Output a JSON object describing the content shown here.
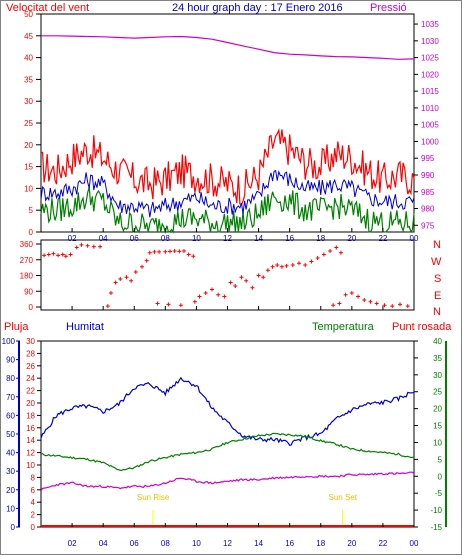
{
  "header": {
    "left_label": "Velocitat del vent",
    "title": "24 hour graph day : 17 Enero 2016",
    "right_label": "Pressió"
  },
  "lower_header": {
    "rain_label": "Pluja",
    "humidity_label": "Humitat",
    "temperature_label": "Temperatura",
    "dewpoint_label": "Punt rosada"
  },
  "compass": [
    "N",
    "W",
    "S",
    "E",
    "N"
  ],
  "sun": {
    "rise_label": "Sun Rise",
    "set_label": "Sun Set"
  },
  "colors": {
    "wind_gust": "#ff0000",
    "wind_avg": "#0000cc",
    "wind_low": "#008000",
    "pressure": "#cc00cc",
    "direction": "#ff0000",
    "humidity": "#0000cc",
    "temperature": "#008000",
    "dewpoint": "#cc00cc",
    "rain": "#ff0000",
    "sun": "#ffff00"
  },
  "chart_data": [
    {
      "type": "line",
      "title": "24 hour graph day : 17 Enero 2016",
      "x_tick_labels": [
        "02",
        "04",
        "06",
        "08",
        "10",
        "12",
        "14",
        "16",
        "18",
        "20",
        "22",
        "00"
      ],
      "y_left_label": "Velocitat del vent",
      "y_left_ticks": [
        "0",
        "5",
        "10",
        "15",
        "20",
        "25",
        "30",
        "35",
        "40",
        "45",
        "50"
      ],
      "ylim_left": [
        0,
        50
      ],
      "y_right_label": "Pressió",
      "y_right_ticks": [
        "975",
        "980",
        "985",
        "990",
        "995",
        "1000",
        "1005",
        "1010",
        "1015",
        "1020",
        "1025",
        "1030",
        "1035"
      ],
      "ylim_right": [
        973,
        1038
      ],
      "hours": [
        0,
        1,
        2,
        3,
        4,
        5,
        6,
        7,
        8,
        9,
        10,
        11,
        12,
        13,
        14,
        15,
        16,
        17,
        18,
        19,
        20,
        21,
        22,
        23,
        24
      ],
      "series": [
        {
          "name": "gust",
          "values": [
            15,
            14,
            17,
            19,
            17,
            14,
            12,
            11,
            12,
            14,
            13,
            12,
            11,
            10,
            13,
            21,
            19,
            16,
            15,
            18,
            17,
            14,
            12,
            13,
            12
          ]
        },
        {
          "name": "average",
          "values": [
            9,
            9,
            10,
            12,
            11,
            6,
            6,
            5,
            6,
            7,
            8,
            6,
            6,
            6,
            8,
            14,
            12,
            10,
            10,
            11,
            10,
            8,
            7,
            7,
            7
          ]
        },
        {
          "name": "low",
          "values": [
            5,
            5,
            6,
            8,
            7,
            2,
            2,
            1,
            2,
            3,
            3,
            2,
            2,
            2,
            4,
            8,
            7,
            5,
            5,
            6,
            5,
            3,
            2,
            2,
            2
          ]
        },
        {
          "name": "Pressió",
          "values": [
            1031.5,
            1031.5,
            1031.4,
            1031.3,
            1031.2,
            1031.0,
            1030.8,
            1031.0,
            1031.2,
            1031.3,
            1031.0,
            1030.5,
            1029.5,
            1028.5,
            1027.5,
            1026.5,
            1026.0,
            1025.8,
            1025.5,
            1025.3,
            1025.2,
            1025.0,
            1024.8,
            1024.5,
            1024.6
          ]
        }
      ]
    },
    {
      "type": "scatter",
      "x_tick_labels": [
        "02",
        "04",
        "06",
        "08",
        "10",
        "12",
        "14",
        "16",
        "18",
        "20",
        "22",
        "00"
      ],
      "y_ticks": [
        "0",
        "90",
        "180",
        "270",
        "360"
      ],
      "ylim": [
        0,
        360
      ],
      "points": [
        [
          0.2,
          295
        ],
        [
          0.5,
          300
        ],
        [
          0.8,
          305
        ],
        [
          1.1,
          295
        ],
        [
          1.4,
          300
        ],
        [
          1.6,
          290
        ],
        [
          1.9,
          300
        ],
        [
          2.3,
          340
        ],
        [
          2.6,
          355
        ],
        [
          3.0,
          350
        ],
        [
          3.4,
          345
        ],
        [
          3.8,
          345
        ],
        [
          4.3,
          5
        ],
        [
          4.5,
          80
        ],
        [
          4.8,
          140
        ],
        [
          5.1,
          160
        ],
        [
          5.5,
          170
        ],
        [
          5.8,
          150
        ],
        [
          6.1,
          200
        ],
        [
          6.5,
          230
        ],
        [
          6.8,
          265
        ],
        [
          7.0,
          310
        ],
        [
          7.3,
          315
        ],
        [
          7.6,
          315
        ],
        [
          8.0,
          316
        ],
        [
          8.3,
          318
        ],
        [
          8.6,
          320
        ],
        [
          8.9,
          318
        ],
        [
          9.2,
          320
        ],
        [
          9.5,
          300
        ],
        [
          9.8,
          290
        ],
        [
          7.5,
          20
        ],
        [
          8.2,
          15
        ],
        [
          9.0,
          10
        ],
        [
          9.9,
          30
        ],
        [
          10.2,
          60
        ],
        [
          10.6,
          80
        ],
        [
          11.0,
          100
        ],
        [
          11.4,
          70
        ],
        [
          11.8,
          60
        ],
        [
          12.2,
          140
        ],
        [
          12.5,
          120
        ],
        [
          12.9,
          170
        ],
        [
          13.2,
          150
        ],
        [
          13.6,
          110
        ],
        [
          14.0,
          180
        ],
        [
          14.3,
          170
        ],
        [
          14.6,
          210
        ],
        [
          14.9,
          230
        ],
        [
          15.2,
          240
        ],
        [
          15.5,
          230
        ],
        [
          15.8,
          235
        ],
        [
          16.2,
          240
        ],
        [
          16.6,
          250
        ],
        [
          17.0,
          240
        ],
        [
          17.4,
          260
        ],
        [
          17.8,
          280
        ],
        [
          18.2,
          300
        ],
        [
          18.6,
          320
        ],
        [
          19.0,
          340
        ],
        [
          19.3,
          310
        ],
        [
          18.8,
          10
        ],
        [
          19.2,
          20
        ],
        [
          19.6,
          70
        ],
        [
          20.0,
          80
        ],
        [
          20.4,
          60
        ],
        [
          20.8,
          40
        ],
        [
          21.2,
          30
        ],
        [
          21.6,
          20
        ],
        [
          22.1,
          10
        ],
        [
          22.6,
          5
        ],
        [
          23.1,
          15
        ],
        [
          23.6,
          5
        ]
      ]
    },
    {
      "type": "line",
      "x_tick_labels": [
        "02",
        "04",
        "06",
        "08",
        "10",
        "12",
        "14",
        "16",
        "18",
        "20",
        "22",
        "00"
      ],
      "y_humidity_ticks": [
        "0",
        "10",
        "20",
        "30",
        "40",
        "50",
        "60",
        "70",
        "80",
        "90",
        "100"
      ],
      "ylim_humidity": [
        0,
        100
      ],
      "y_rain_ticks": [
        "0",
        "2",
        "4",
        "6",
        "8",
        "10",
        "12",
        "14",
        "16",
        "18",
        "20",
        "22",
        "24",
        "26",
        "28",
        "30"
      ],
      "ylim_rain": [
        0,
        30
      ],
      "y_temperature_ticks": [
        "-15",
        "-10",
        "-5",
        "0",
        "5",
        "10",
        "15",
        "20",
        "25",
        "30",
        "35",
        "40"
      ],
      "ylim_temperature": [
        -15,
        40
      ],
      "hours": [
        0,
        1,
        2,
        3,
        4,
        5,
        6,
        7,
        8,
        9,
        10,
        11,
        12,
        13,
        14,
        15,
        16,
        17,
        18,
        19,
        20,
        21,
        22,
        23,
        24
      ],
      "series": [
        {
          "name": "Humitat",
          "values": [
            48,
            60,
            64,
            65,
            62,
            66,
            75,
            77,
            72,
            80,
            76,
            64,
            56,
            49,
            47,
            47,
            45,
            48,
            50,
            58,
            63,
            66,
            67,
            69,
            73
          ]
        },
        {
          "name": "Temperatura",
          "values": [
            6.5,
            6.0,
            5.5,
            5.0,
            4.0,
            1.8,
            2.5,
            4.5,
            5.5,
            6.5,
            7.0,
            8.0,
            10.0,
            11.0,
            12.0,
            12.5,
            12.3,
            11.8,
            10.5,
            9.5,
            8.0,
            7.5,
            7.0,
            6.5,
            5.5
          ]
        },
        {
          "name": "Punt rosada",
          "values": [
            -4.0,
            -2.5,
            -2.0,
            -3.0,
            -3.0,
            -3.5,
            -3.0,
            -3.0,
            -2.0,
            -0.5,
            -1.5,
            -2.0,
            -1.5,
            -1.0,
            -1.0,
            -0.5,
            -0.3,
            0.0,
            0.0,
            0.0,
            0.5,
            0.5,
            0.8,
            0.8,
            1.0
          ]
        },
        {
          "name": "Pluja",
          "values": [
            0,
            0,
            0,
            0,
            0,
            0,
            0,
            0,
            0,
            0,
            0,
            0,
            0,
            0,
            0,
            0,
            0,
            0,
            0,
            0,
            0,
            0,
            0,
            0,
            0
          ]
        }
      ],
      "sun_rise_hour": 7.2,
      "sun_set_hour": 19.4
    }
  ]
}
